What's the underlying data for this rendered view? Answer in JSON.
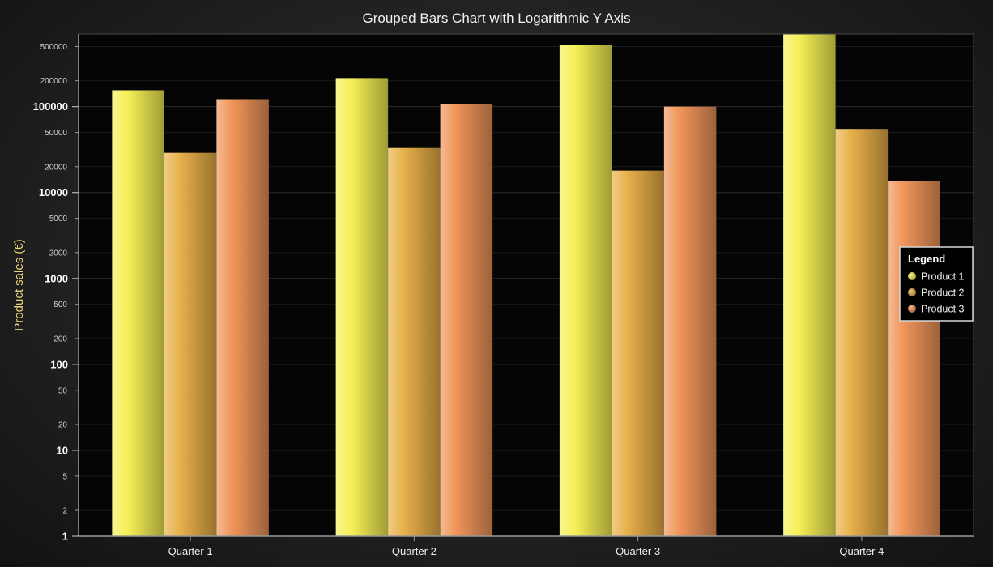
{
  "chart_data": {
    "type": "bar",
    "title": "Grouped Bars Chart with Logarithmic Y Axis",
    "xlabel": "",
    "ylabel": "Product sales (€)",
    "yscale": "log",
    "ylim": [
      1,
      700000
    ],
    "grid": true,
    "legend_position": "right",
    "legend_title": "Legend",
    "categories": [
      "Quarter 1",
      "Quarter 2",
      "Quarter 3",
      "Quarter 4"
    ],
    "series": [
      {
        "name": "Product 1",
        "values": [
          155000,
          215000,
          520000,
          700000
        ],
        "color": "#f5f055"
      },
      {
        "name": "Product 2",
        "values": [
          29000,
          33000,
          18000,
          55000
        ],
        "color": "#e8b04a"
      },
      {
        "name": "Product 3",
        "values": [
          122000,
          108000,
          100000,
          13500
        ],
        "color": "#f0955a"
      }
    ],
    "y_ticks_major": [
      "1",
      "10",
      "100",
      "1000",
      "10000",
      "100000"
    ],
    "y_ticks_minor": [
      "2",
      "5",
      "20",
      "50",
      "200",
      "500",
      "2000",
      "5000",
      "20000",
      "50000",
      "200000",
      "500000"
    ]
  }
}
